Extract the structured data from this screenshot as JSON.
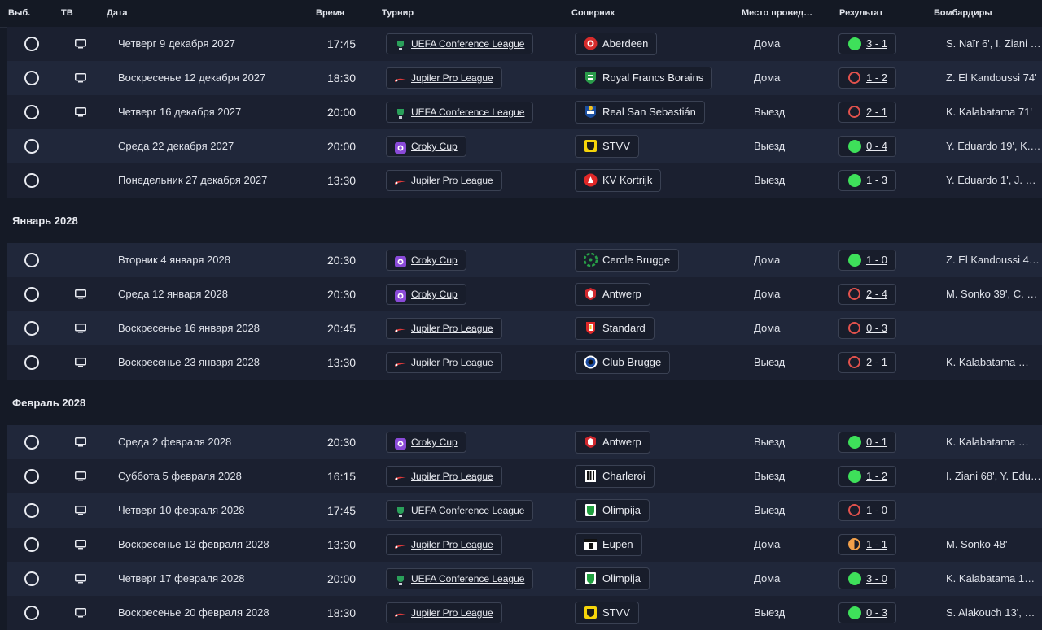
{
  "header": {
    "select": "Выб.",
    "tv": "ТВ",
    "date": "Дата",
    "time": "Время",
    "competition": "Турнир",
    "opponent": "Соперник",
    "venue": "Место провед…",
    "result": "Результат",
    "scorers": "Бомбардиры"
  },
  "colors": {
    "conference": "#2aa05a",
    "jupiler": "#e03a3a",
    "croky": "#8a4ad8",
    "win": "#3ee05a",
    "loss": "#e2524d",
    "draw": "#f2a04a"
  },
  "sections": [
    {
      "month": "",
      "matches": [
        {
          "tv": true,
          "date": "Четверг 9 декабря 2027",
          "time": "17:45",
          "competition": "UEFA Conference League",
          "comp_icon": "conference-league-icon",
          "opponent": "Aberdeen",
          "crest": "aberdeen-crest-icon",
          "venue": "Дома",
          "result": "3 - 1",
          "outcome": "win",
          "scorers": "S. Naïr 6', I. Ziani …"
        },
        {
          "tv": true,
          "date": "Воскресенье 12 декабря 2027",
          "time": "18:30",
          "competition": "Jupiler Pro League",
          "comp_icon": "jupiler-league-icon",
          "opponent": "Royal Francs Borains",
          "crest": "francs-borains-crest-icon",
          "venue": "Дома",
          "result": "1 - 2",
          "outcome": "loss",
          "scorers": "Z. El Kandoussi 74'"
        },
        {
          "tv": true,
          "date": "Четверг 16 декабря 2027",
          "time": "20:00",
          "competition": "UEFA Conference League",
          "comp_icon": "conference-league-icon",
          "opponent": "Real San Sebastián",
          "crest": "san-sebastian-crest-icon",
          "venue": "Выезд",
          "result": "2 - 1",
          "outcome": "loss",
          "scorers": "K. Kalabatama 71'"
        },
        {
          "tv": false,
          "date": "Среда 22 декабря 2027",
          "time": "20:00",
          "competition": "Croky Cup",
          "comp_icon": "croky-cup-icon",
          "opponent": "STVV",
          "crest": "stvv-crest-icon",
          "venue": "Выезд",
          "result": "0 - 4",
          "outcome": "win",
          "scorers": "Y. Eduardo 19', K.…"
        },
        {
          "tv": false,
          "date": "Понедельник 27 декабря 2027",
          "time": "13:30",
          "competition": "Jupiler Pro League",
          "comp_icon": "jupiler-league-icon",
          "opponent": "KV Kortrijk",
          "crest": "kortrijk-crest-icon",
          "venue": "Выезд",
          "result": "1 - 3",
          "outcome": "win",
          "scorers": "Y. Eduardo 1', J. …"
        }
      ]
    },
    {
      "month": "Январь 2028",
      "matches": [
        {
          "tv": false,
          "date": "Вторник 4 января 2028",
          "time": "20:30",
          "competition": "Croky Cup",
          "comp_icon": "croky-cup-icon",
          "opponent": "Cercle Brugge",
          "crest": "cercle-brugge-crest-icon",
          "venue": "Дома",
          "result": "1 - 0",
          "outcome": "win",
          "scorers": "Z. El Kandoussi 4…"
        },
        {
          "tv": true,
          "date": "Среда 12 января 2028",
          "time": "20:30",
          "competition": "Croky Cup",
          "comp_icon": "croky-cup-icon",
          "opponent": "Antwerp",
          "crest": "antwerp-crest-icon",
          "venue": "Дома",
          "result": "2 - 4",
          "outcome": "loss",
          "scorers": "M. Sonko 39', C. …"
        },
        {
          "tv": true,
          "date": "Воскресенье 16 января 2028",
          "time": "20:45",
          "competition": "Jupiler Pro League",
          "comp_icon": "jupiler-league-icon",
          "opponent": "Standard",
          "crest": "standard-crest-icon",
          "venue": "Дома",
          "result": "0 - 3",
          "outcome": "loss",
          "scorers": ""
        },
        {
          "tv": true,
          "date": "Воскресенье 23 января 2028",
          "time": "13:30",
          "competition": "Jupiler Pro League",
          "comp_icon": "jupiler-league-icon",
          "opponent": "Club Brugge",
          "crest": "club-brugge-crest-icon",
          "venue": "Выезд",
          "result": "2 - 1",
          "outcome": "loss",
          "scorers": "K. Kalabatama …"
        }
      ]
    },
    {
      "month": "Февраль 2028",
      "matches": [
        {
          "tv": true,
          "date": "Среда 2 февраля 2028",
          "time": "20:30",
          "competition": "Croky Cup",
          "comp_icon": "croky-cup-icon",
          "opponent": "Antwerp",
          "crest": "antwerp-crest-icon",
          "venue": "Выезд",
          "result": "0 - 1",
          "outcome": "win",
          "scorers": "K. Kalabatama …"
        },
        {
          "tv": true,
          "date": "Суббота 5 февраля 2028",
          "time": "16:15",
          "competition": "Jupiler Pro League",
          "comp_icon": "jupiler-league-icon",
          "opponent": "Charleroi",
          "crest": "charleroi-crest-icon",
          "venue": "Выезд",
          "result": "1 - 2",
          "outcome": "win",
          "scorers": "I. Ziani 68', Y. Edu…"
        },
        {
          "tv": true,
          "date": "Четверг 10 февраля 2028",
          "time": "17:45",
          "competition": "UEFA Conference League",
          "comp_icon": "conference-league-icon",
          "opponent": "Olimpija",
          "crest": "olimpija-crest-icon",
          "venue": "Выезд",
          "result": "1 - 0",
          "outcome": "loss",
          "scorers": ""
        },
        {
          "tv": true,
          "date": "Воскресенье 13 февраля 2028",
          "time": "13:30",
          "competition": "Jupiler Pro League",
          "comp_icon": "jupiler-league-icon",
          "opponent": "Eupen",
          "crest": "eupen-crest-icon",
          "venue": "Дома",
          "result": "1 - 1",
          "outcome": "draw",
          "scorers": "M. Sonko 48'"
        },
        {
          "tv": true,
          "date": "Четверг 17 февраля 2028",
          "time": "20:00",
          "competition": "UEFA Conference League",
          "comp_icon": "conference-league-icon",
          "opponent": "Olimpija",
          "crest": "olimpija-crest-icon",
          "venue": "Дома",
          "result": "3 - 0",
          "outcome": "win",
          "scorers": "K. Kalabatama 1…"
        },
        {
          "tv": true,
          "date": "Воскресенье 20 февраля 2028",
          "time": "18:30",
          "competition": "Jupiler Pro League",
          "comp_icon": "jupiler-league-icon",
          "opponent": "STVV",
          "crest": "stvv-crest-icon",
          "venue": "Выезд",
          "result": "0 - 3",
          "outcome": "win",
          "scorers": "S. Alakouch 13', …"
        }
      ]
    }
  ]
}
